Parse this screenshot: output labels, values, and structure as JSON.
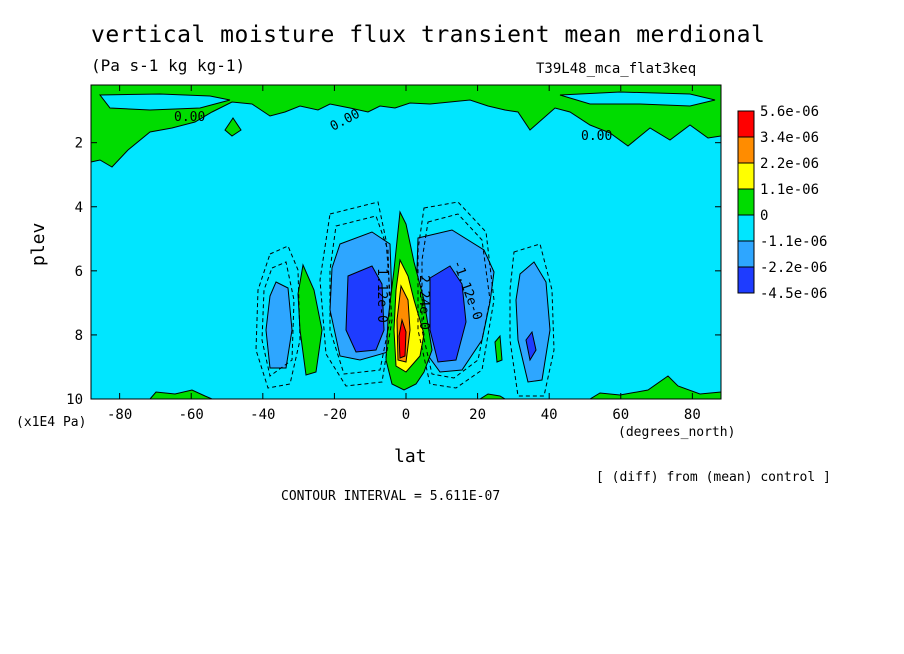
{
  "chart_data": {
    "type": "heatmap",
    "title": "vertical moisture flux transient mean merdional",
    "units": "(Pa s-1 kg kg-1)",
    "experiment": "T39L48_mca_flat3keq",
    "xlabel": "lat",
    "x_unit": "(degrees_north)",
    "ylabel": "plev",
    "y_unit": "(x1E4 Pa)",
    "x_ticks": [
      "-80",
      "-60",
      "-40",
      "-20",
      "0",
      "20",
      "40",
      "60",
      "80"
    ],
    "y_ticks": [
      "2",
      "4",
      "6",
      "8",
      "10"
    ],
    "xlim": [
      -88,
      88
    ],
    "ylim": [
      10,
      0.2
    ],
    "note": "[ (diff) from (mean) control ]",
    "contour_interval": "CONTOUR INTERVAL = 5.611E-07",
    "contour_labels": [
      "0.00",
      "0.00",
      "0.00",
      "-1.12e-0",
      "1.12e-0",
      "2.24e-0"
    ],
    "colorbar": {
      "labels": [
        "5.6e-06",
        "3.4e-06",
        "2.2e-06",
        "1.1e-06",
        "0",
        "-1.1e-06",
        "-2.2e-06",
        "-4.5e-06"
      ],
      "colors": [
        "#ff0000",
        "#ff8c00",
        "#ffff00",
        "#00dc00",
        "#00e6ff",
        "#2ea6ff",
        "#1e3cff"
      ]
    },
    "features": [
      {
        "name": "upper-level band",
        "lat_range": [
          -88,
          88
        ],
        "plev_range": [
          0.2,
          2.7
        ],
        "value_class": "0 to 1.1e-06"
      },
      {
        "name": "equatorial maximum",
        "lat": 0,
        "plev_range": [
          4.2,
          9.8
        ],
        "value_class": "up to 5.6e-06"
      },
      {
        "name": "south subtropical minimum",
        "lat_range": [
          -22,
          -4
        ],
        "plev_range": [
          5.0,
          9.0
        ],
        "value_class": "-4.5e-06 to -2.2e-06"
      },
      {
        "name": "north subtropical minimum",
        "lat_range": [
          6,
          24
        ],
        "plev_range": [
          5.0,
          9.0
        ],
        "value_class": "-4.5e-06 to -2.2e-06"
      },
      {
        "name": "south secondary minimum",
        "lat": -35,
        "plev_range": [
          7.0,
          9.0
        ],
        "value_class": "-2.2e-06 to -1.1e-06"
      },
      {
        "name": "north secondary minimum",
        "lat": 36,
        "plev_range": [
          6.3,
          9.5
        ],
        "value_class": "-2.2e-06 to -1.1e-06"
      },
      {
        "name": "low-level patches",
        "lat_range": [
          -88,
          88
        ],
        "plev_range": [
          9.4,
          10
        ],
        "value_class": "0 to 1.1e-06"
      }
    ]
  }
}
